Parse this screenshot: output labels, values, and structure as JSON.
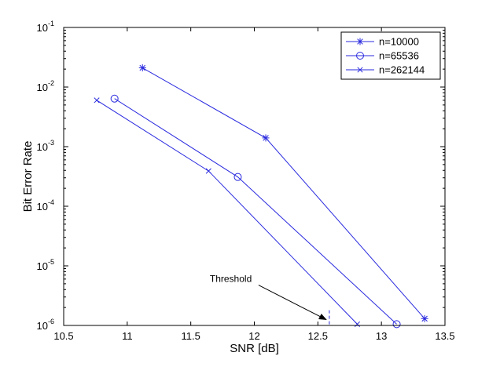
{
  "chart_data": {
    "type": "line",
    "title": "",
    "xlabel": "SNR [dB]",
    "ylabel": "Bit Error Rate",
    "xlim": [
      10.5,
      13.5
    ],
    "ylim": [
      1e-06,
      0.1
    ],
    "yscale": "log",
    "x_ticks": [
      10.5,
      11,
      11.5,
      12,
      12.5,
      13,
      13.5
    ],
    "x_tick_labels": [
      "10.5",
      "11",
      "11.5",
      "12",
      "12.5",
      "13",
      "13.5"
    ],
    "y_ticks": [
      {
        "value": 1e-06,
        "exp": "-6"
      },
      {
        "value": 1e-05,
        "exp": "-5"
      },
      {
        "value": 0.0001,
        "exp": "-4"
      },
      {
        "value": 0.001,
        "exp": "-3"
      },
      {
        "value": 0.01,
        "exp": "-2"
      },
      {
        "value": 0.1,
        "exp": "-1"
      }
    ],
    "y_tick_base": "10",
    "legend_position": "top-right",
    "color": "#2a2adf",
    "series": [
      {
        "name": "n=10000",
        "marker": "star",
        "x": [
          11.12,
          12.09,
          13.34
        ],
        "y": [
          0.021,
          0.0014,
          1.3e-06
        ]
      },
      {
        "name": "n=65536",
        "marker": "circle",
        "x": [
          10.9,
          11.87,
          13.12
        ],
        "y": [
          0.0064,
          0.00031,
          1.05e-06
        ]
      },
      {
        "name": "n=262144",
        "marker": "x",
        "x": [
          10.76,
          11.64,
          12.81
        ],
        "y": [
          0.006,
          0.00039,
          1.05e-06
        ]
      }
    ],
    "annotations": [
      {
        "text": "Threshold",
        "x": 12.59,
        "y": 1e-06,
        "type": "arrow",
        "vline_from": 1e-06,
        "vline_to": 1.8e-06
      }
    ]
  }
}
